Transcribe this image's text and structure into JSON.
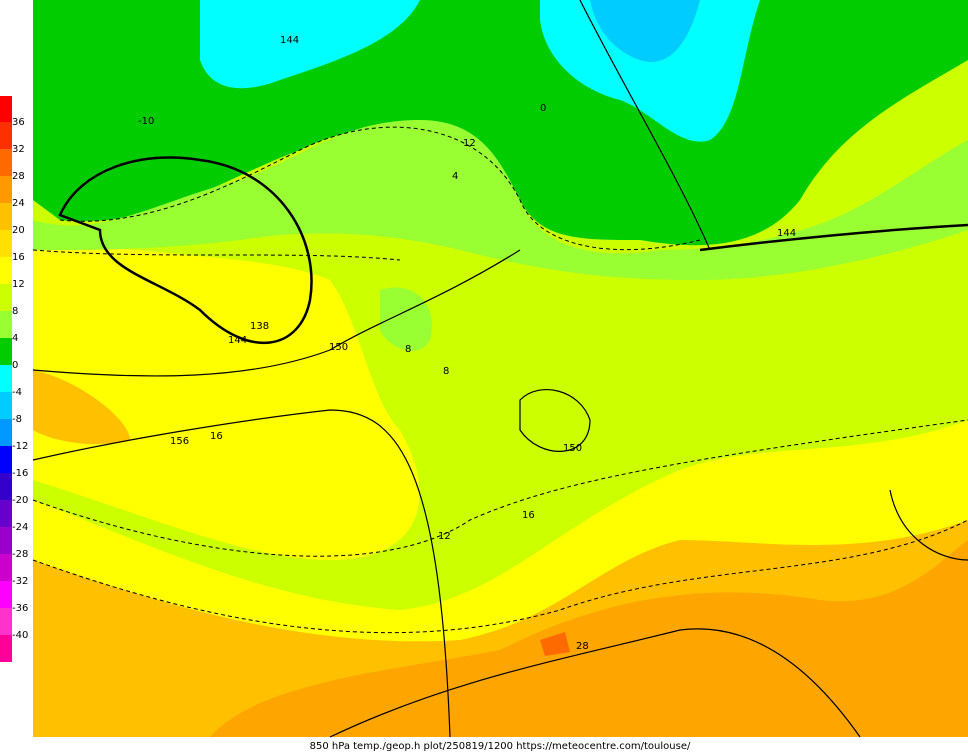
{
  "colorbar": {
    "labels": [
      36,
      32,
      28,
      24,
      20,
      16,
      12,
      8,
      4,
      0,
      -4,
      -8,
      -12,
      -16,
      -20,
      -24,
      -28,
      -32,
      -36,
      -40
    ]
  },
  "map_labels": {
    "geopotential": [
      144,
      144,
      138,
      150,
      156,
      150,
      144
    ],
    "temperature": [
      16,
      12,
      8,
      8,
      28,
      16,
      12,
      4,
      0,
      -10
    ]
  },
  "footer": "850 hPa temp./geop.h plot/250819/1200 https://meteocentre.com/toulouse/"
}
